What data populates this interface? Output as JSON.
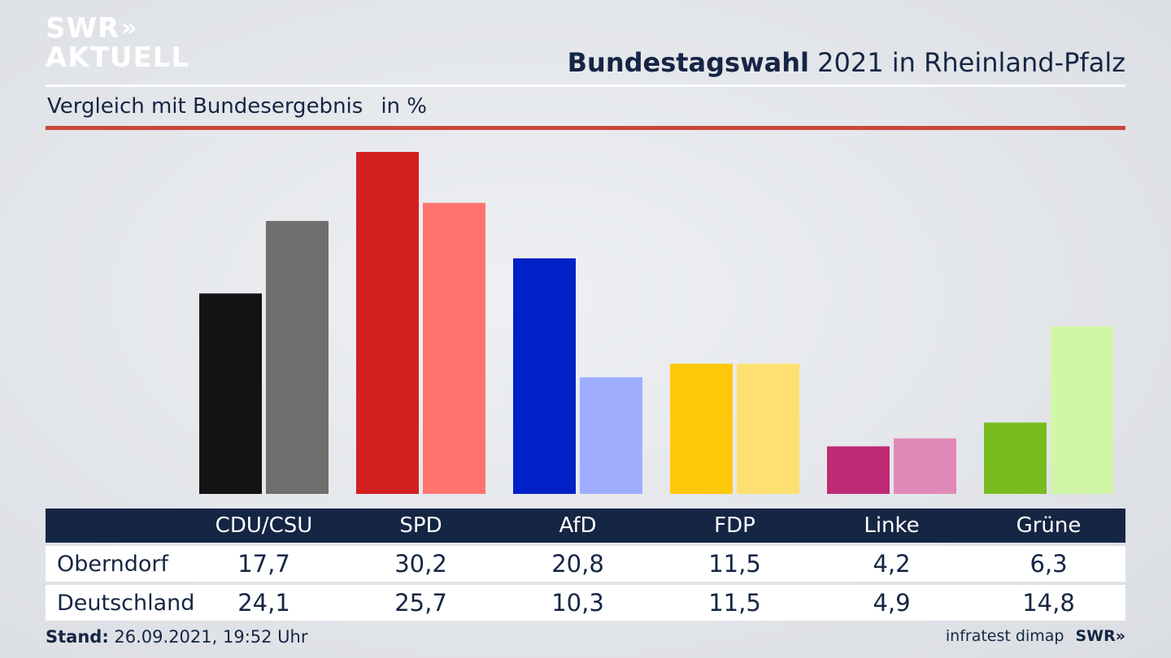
{
  "logo": {
    "line1": "SWR",
    "line1_chevrons": "»",
    "line2": "AKTUELL"
  },
  "header": {
    "title_bold": "Bundestagswahl",
    "title_rest": " 2021 in Rheinland-Pfalz"
  },
  "subtitle": {
    "text": "Vergleich mit Bundesergebnis",
    "unit": "in %"
  },
  "chart_data": {
    "type": "bar",
    "categories": [
      "CDU/CSU",
      "SPD",
      "AfD",
      "FDP",
      "Linke",
      "Grüne"
    ],
    "series": [
      {
        "name": "Oberndorf",
        "values": [
          17.7,
          30.2,
          20.8,
          11.5,
          4.2,
          6.3
        ],
        "colors": [
          "#131313",
          "#d41f1f",
          "#0020c8",
          "#fdc90a",
          "#be2b74",
          "#78bd1f"
        ]
      },
      {
        "name": "Deutschland",
        "values": [
          24.1,
          25.7,
          10.3,
          11.5,
          4.9,
          14.8
        ],
        "colors": [
          "#706f6d",
          "#ff756e",
          "#9fadff",
          "#fde071",
          "#e089b9",
          "#d2f6a8"
        ]
      }
    ],
    "ylim": [
      0,
      30.2
    ],
    "grid": false
  },
  "table": {
    "rows": [
      {
        "label": "Oberndorf",
        "values": [
          "17,7",
          "30,2",
          "20,8",
          "11,5",
          "4,2",
          "6,3"
        ]
      },
      {
        "label": "Deutschland",
        "values": [
          "24,1",
          "25,7",
          "10,3",
          "11,5",
          "4,9",
          "14,8"
        ]
      }
    ]
  },
  "footer": {
    "stand_label": "Stand:",
    "stand_value": " 26.09.2021, 19:52 Uhr",
    "source": "infratest dimap",
    "brand": "SWR",
    "brand_chevrons": "»"
  },
  "colors": {
    "navy": "#152544",
    "accent_red": "#c8473a"
  }
}
